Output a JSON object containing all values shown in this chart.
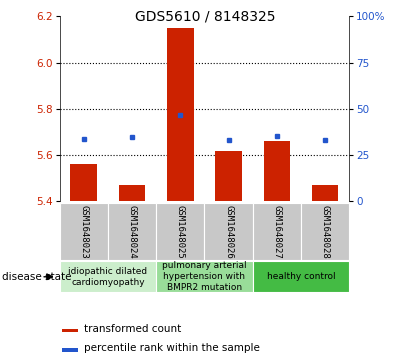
{
  "title": "GDS5610 / 8148325",
  "samples": [
    "GSM1648023",
    "GSM1648024",
    "GSM1648025",
    "GSM1648026",
    "GSM1648027",
    "GSM1648028"
  ],
  "bar_values": [
    5.56,
    5.47,
    6.15,
    5.62,
    5.66,
    5.47
  ],
  "bar_base": 5.4,
  "percentile_values": [
    5.67,
    5.68,
    5.775,
    5.665,
    5.685,
    5.665
  ],
  "ylim": [
    5.4,
    6.2
  ],
  "y2lim": [
    0,
    100
  ],
  "y_ticks": [
    5.4,
    5.6,
    5.8,
    6.0,
    6.2
  ],
  "y2_ticks": [
    0,
    25,
    50,
    75,
    100
  ],
  "bar_color": "#cc2200",
  "percentile_color": "#2255cc",
  "disease_groups": [
    {
      "label": "idiopathic dilated\ncardiomyopathy",
      "indices": [
        0,
        1
      ],
      "color": "#cceecc"
    },
    {
      "label": "pulmonary arterial\nhypertension with\nBMPR2 mutation",
      "indices": [
        2,
        3
      ],
      "color": "#99dd99"
    },
    {
      "label": "healthy control",
      "indices": [
        4,
        5
      ],
      "color": "#44bb44"
    }
  ],
  "legend_bar_label": "transformed count",
  "legend_pct_label": "percentile rank within the sample",
  "disease_state_label": "disease state",
  "sample_bg_color": "#c8c8c8",
  "title_fontsize": 10,
  "tick_fontsize": 7.5,
  "sample_fontsize": 6.5,
  "disease_fontsize": 6.5,
  "legend_fontsize": 7.5
}
